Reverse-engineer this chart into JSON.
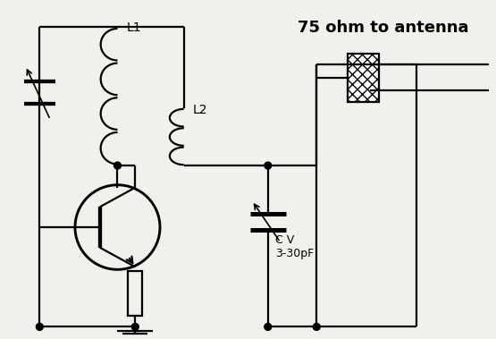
{
  "title": "75 ohm to antenna",
  "title_fontsize": 13,
  "title_fontweight": "bold",
  "bg_color": "#f2f0ec",
  "line_color": "black",
  "line_width": 1.6,
  "fig_width": 5.55,
  "fig_height": 3.79,
  "label_L1": "L1",
  "label_L2": "L2",
  "label_CV": "C V\n3-30pF"
}
